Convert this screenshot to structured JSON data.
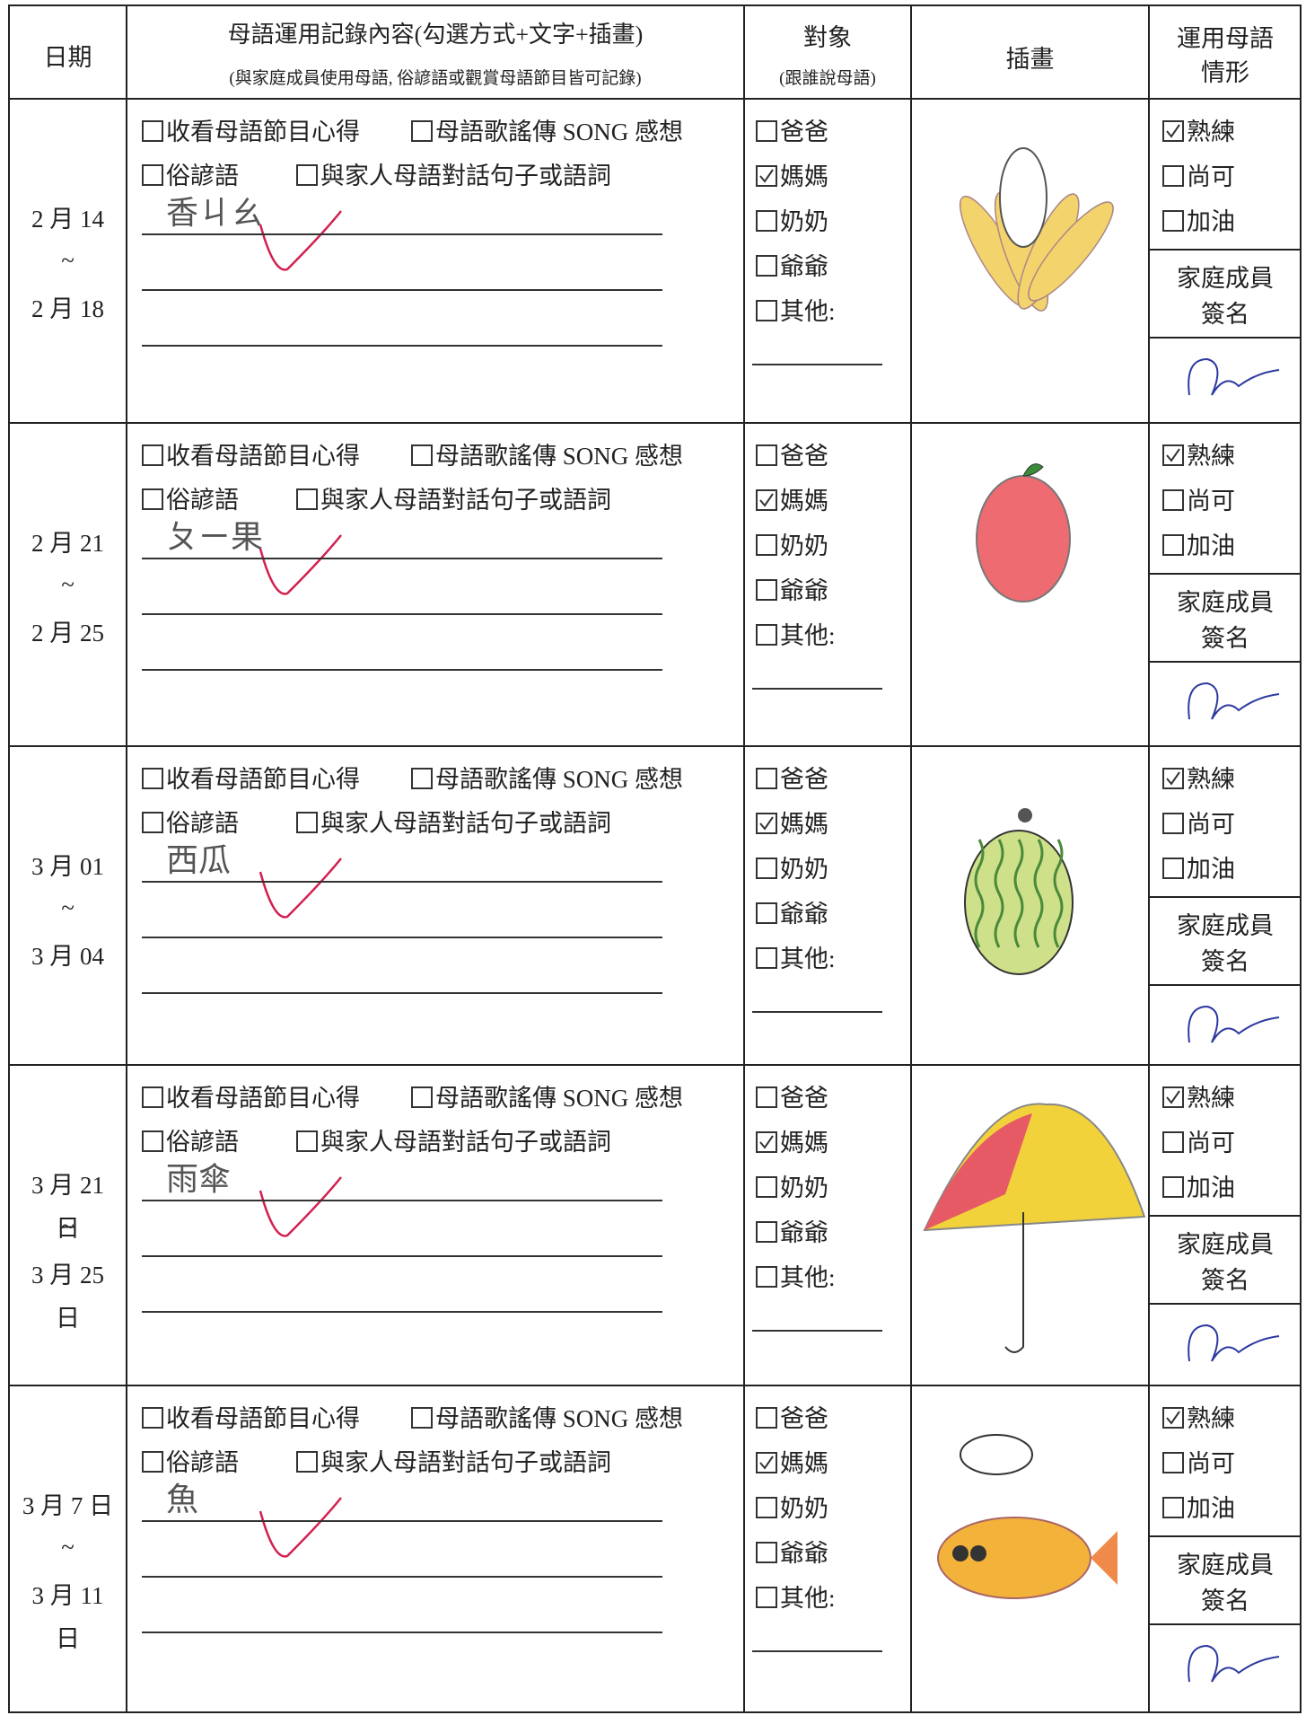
{
  "header": {
    "date": "日期",
    "content": "母語運用記錄內容(勾選方式+文字+插畫)",
    "content_note": "(與家庭成員使用母語, 俗諺語或觀賞母語節目皆可記錄)",
    "target": "對象",
    "target_note": "(跟誰說母語)",
    "drawing": "插畫",
    "usage": "運用母語情形"
  },
  "range_sep": "~",
  "content_options": [
    "收看母語節目心得",
    "母語歌謠傳 SONG 感想",
    "俗諺語",
    "與家人母語對話句子或語詞"
  ],
  "target_options": [
    "爸爸",
    "媽媽",
    "奶奶",
    "爺爺",
    "其他:"
  ],
  "usage_options": [
    "熟練",
    "尚可",
    "加油"
  ],
  "signature_label": "家庭成員簽名",
  "rows": [
    {
      "date_from": "2 月 14",
      "date_to": "2 月 18",
      "written": "香ㄐㄠ",
      "target_checked": 1,
      "usage_checked": 0
    },
    {
      "date_from": "2 月 21",
      "date_to": "2 月 25",
      "written": "ㄆㄧ果",
      "target_checked": 1,
      "usage_checked": 0
    },
    {
      "date_from": "3 月 01",
      "date_to": "3 月 04",
      "written": "西瓜",
      "target_checked": 1,
      "usage_checked": 0
    },
    {
      "date_from": "3 月 21 日",
      "date_to": "3 月 25 日",
      "written": "雨傘",
      "target_checked": 1,
      "usage_checked": 0
    },
    {
      "date_from": "3 月 7 日",
      "date_to": "3 月 11 日",
      "written": "魚",
      "target_checked": 1,
      "usage_checked": 0
    }
  ]
}
